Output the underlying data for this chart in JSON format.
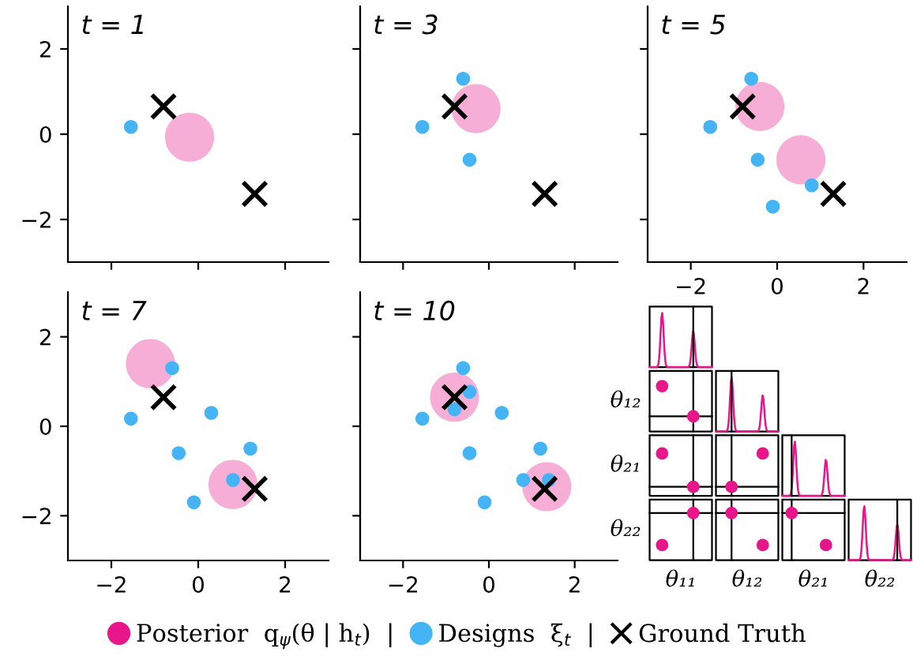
{
  "chart_data": [
    {
      "type": "scatter",
      "title": "t = 1",
      "xlim": [
        -3,
        3
      ],
      "ylim": [
        -3,
        3
      ],
      "xticks": [
        -2,
        0,
        2
      ],
      "yticks": [
        2,
        0,
        -2
      ],
      "tick_labels": "y",
      "grid": false,
      "legend": "bottom",
      "series": [
        {
          "name": "Posterior  q$_{ψ}$(θ | h$_{t}$)  |",
          "color": "#e8168a",
          "marker": "circle",
          "x": [
            -0.2
          ],
          "values": [
            -0.07
          ]
        },
        {
          "name": "Designs  ξ$_{t}$  |",
          "color": "#45b4f5",
          "marker": "circle",
          "x": [
            -1.55
          ],
          "values": [
            0.17
          ]
        },
        {
          "name": "Ground Truth",
          "color": "#000000",
          "marker": "cross",
          "x": [
            -0.8,
            1.3
          ],
          "values": [
            0.65,
            -1.4
          ]
        }
      ]
    },
    {
      "type": "scatter",
      "title": "t = 3",
      "xlim": [
        -3,
        3
      ],
      "ylim": [
        -3,
        3
      ],
      "xticks": [
        -2,
        0,
        2
      ],
      "yticks": [
        2,
        0,
        -2
      ],
      "tick_labels": false,
      "grid": false,
      "series": [
        {
          "color": "#e8168a",
          "marker": "circle",
          "x": [
            -0.3
          ],
          "values": [
            0.6
          ]
        },
        {
          "color": "#45b4f5",
          "marker": "circle",
          "x": [
            -1.55,
            -0.6,
            -0.45
          ],
          "values": [
            0.17,
            1.3,
            -0.6
          ]
        },
        {
          "color": "#000000",
          "marker": "cross",
          "x": [
            -0.8,
            1.3
          ],
          "values": [
            0.65,
            -1.4
          ]
        }
      ]
    },
    {
      "type": "scatter",
      "title": "t = 5",
      "xlim": [
        -3,
        3
      ],
      "ylim": [
        -3,
        3
      ],
      "xticks": [
        -2,
        0,
        2
      ],
      "yticks": [
        2,
        0,
        -2
      ],
      "tick_labels": "x",
      "grid": false,
      "series": [
        {
          "color": "#e8168a",
          "marker": "circle",
          "x": [
            -0.4,
            0.55
          ],
          "values": [
            0.65,
            -0.6
          ]
        },
        {
          "color": "#45b4f5",
          "marker": "circle",
          "x": [
            -1.55,
            -0.6,
            -0.45,
            0.8,
            -0.1
          ],
          "values": [
            0.17,
            1.3,
            -0.6,
            -1.2,
            -1.7
          ]
        },
        {
          "color": "#000000",
          "marker": "cross",
          "x": [
            -0.8,
            1.3
          ],
          "values": [
            0.65,
            -1.4
          ]
        }
      ]
    },
    {
      "type": "scatter",
      "title": "t = 7",
      "xlim": [
        -3,
        3
      ],
      "ylim": [
        -3,
        3
      ],
      "xticks": [
        -2,
        0,
        2
      ],
      "yticks": [
        2,
        0,
        -2
      ],
      "grid": false,
      "series": [
        {
          "color": "#e8168a",
          "marker": "circle",
          "x": [
            -1.1,
            0.8
          ],
          "values": [
            1.4,
            -1.3
          ]
        },
        {
          "color": "#45b4f5",
          "marker": "circle",
          "x": [
            -1.55,
            -0.6,
            -0.45,
            0.8,
            -0.1,
            0.3,
            1.2
          ],
          "values": [
            0.17,
            1.3,
            -0.6,
            -1.2,
            -1.7,
            0.3,
            -0.5
          ]
        },
        {
          "color": "#000000",
          "marker": "cross",
          "x": [
            -0.8,
            1.3
          ],
          "values": [
            0.65,
            -1.4
          ]
        }
      ]
    },
    {
      "type": "scatter",
      "title": "t = 10",
      "xlim": [
        -3,
        3
      ],
      "ylim": [
        -3,
        3
      ],
      "xticks": [
        -2,
        0,
        2
      ],
      "yticks": [
        2,
        0,
        -2
      ],
      "tick_labels": "x",
      "grid": false,
      "series": [
        {
          "color": "#e8168a",
          "marker": "circle",
          "x": [
            -0.8,
            1.35
          ],
          "values": [
            0.65,
            -1.35
          ]
        },
        {
          "color": "#45b4f5",
          "marker": "circle",
          "x": [
            -1.55,
            -0.6,
            -0.45,
            0.8,
            -0.1,
            0.3,
            1.2,
            -0.45,
            -0.8,
            1.4
          ],
          "values": [
            0.17,
            1.3,
            -0.6,
            -1.2,
            -1.7,
            0.3,
            -0.5,
            0.77,
            0.38,
            -1.2
          ]
        },
        {
          "color": "#000000",
          "marker": "cross",
          "x": [
            -0.8,
            1.3
          ],
          "values": [
            0.65,
            -1.4
          ]
        }
      ]
    },
    {
      "type": "other",
      "categories": [
        "θ₁₁",
        "θ₁₂",
        "θ₂₁",
        "θ₂₂"
      ],
      "y_categories": [
        "θ₁₂",
        "θ₂₁",
        "θ₂₂"
      ]
    }
  ]
}
